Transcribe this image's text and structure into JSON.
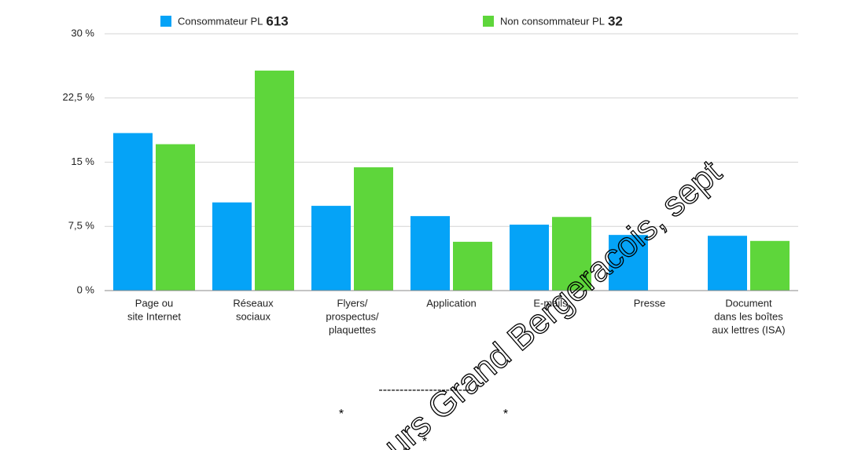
{
  "chart_data": {
    "type": "bar",
    "categories": [
      [
        "Page ou",
        "site Internet"
      ],
      [
        "Réseaux",
        "sociaux"
      ],
      [
        "Flyers/",
        "prospectus/",
        "plaquettes"
      ],
      [
        "Application"
      ],
      [
        "E-mails"
      ],
      [
        "Presse"
      ],
      [
        "Document",
        "dans les boîtes",
        "aux lettres (ISA)"
      ]
    ],
    "series": [
      {
        "name": "Consommateur PL",
        "n": 613,
        "color": "#05a3f7",
        "values": [
          18.4,
          10.3,
          9.9,
          8.7,
          7.7,
          6.5,
          6.4
        ]
      },
      {
        "name": "Non consommateur PL",
        "n": 32,
        "color": "#5ed63b",
        "values": [
          17.1,
          25.7,
          14.4,
          5.7,
          8.6,
          null,
          5.8
        ]
      }
    ],
    "ylim": [
      0,
      30
    ],
    "yticks": [
      {
        "value": 0,
        "label": "0 %"
      },
      {
        "value": 7.5,
        "label": "7,5 %"
      },
      {
        "value": 15,
        "label": "15 %"
      },
      {
        "value": 22.5,
        "label": "22,5 %"
      },
      {
        "value": 30,
        "label": "30 %"
      }
    ],
    "grid": true,
    "watermark": "urs Grand Bergeracois, sept",
    "separator": "----------------------",
    "stars": [
      "*",
      "*",
      "*"
    ]
  }
}
